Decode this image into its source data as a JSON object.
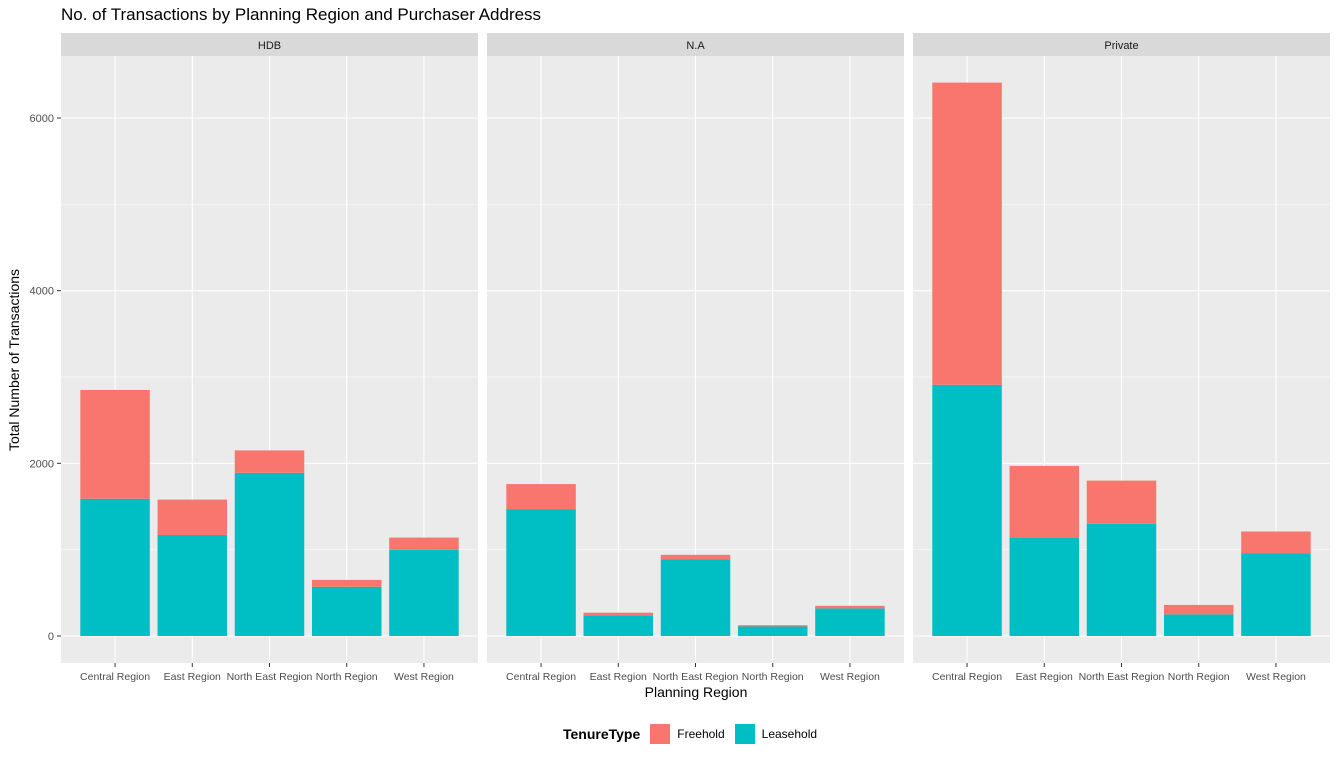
{
  "chart_data": {
    "type": "bar",
    "stacked": true,
    "title": "No. of Transactions by Planning Region and Purchaser Address",
    "xlabel": "Planning Region",
    "ylabel": "Total Number of Transactions",
    "ylim": [
      0,
      6700
    ],
    "yticks": [
      0,
      2000,
      4000,
      6000
    ],
    "grid": true,
    "legend": {
      "title": "TenureType",
      "position": "bottom",
      "items": [
        {
          "name": "Freehold",
          "color": "#F8766D"
        },
        {
          "name": "Leasehold",
          "color": "#00BFC4"
        }
      ]
    },
    "categories": [
      "Central Region",
      "East Region",
      "North East Region",
      "North Region",
      "West Region"
    ],
    "facets": [
      {
        "label": "HDB",
        "series": [
          {
            "name": "Leasehold",
            "values": [
              1590,
              1170,
              1890,
              570,
              1000
            ]
          },
          {
            "name": "Freehold",
            "values": [
              1260,
              410,
              260,
              80,
              140
            ]
          }
        ]
      },
      {
        "label": "N.A",
        "series": [
          {
            "name": "Leasehold",
            "values": [
              1470,
              240,
              890,
              110,
              320
            ]
          },
          {
            "name": "Freehold",
            "values": [
              290,
              30,
              50,
              15,
              30
            ]
          }
        ]
      },
      {
        "label": "Private",
        "series": [
          {
            "name": "Leasehold",
            "values": [
              2910,
              1140,
              1300,
              250,
              960
            ]
          },
          {
            "name": "Freehold",
            "values": [
              3500,
              830,
              500,
              110,
              250
            ]
          }
        ]
      }
    ]
  }
}
